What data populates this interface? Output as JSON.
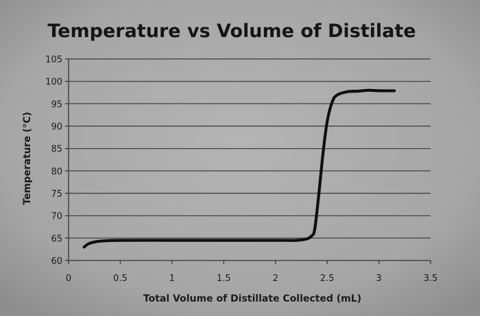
{
  "chart_data": {
    "type": "line",
    "title": "Temperature vs Volume of Distilate",
    "xlabel": "Total Volume of Distillate Collected (mL)",
    "ylabel": "Temperature (°C)",
    "xlim": [
      0,
      3.5
    ],
    "ylim": [
      60,
      105
    ],
    "x_ticks": [
      "0",
      "0.5",
      "1",
      "1.5",
      "2",
      "2.5",
      "3",
      "3.5"
    ],
    "y_ticks": [
      "60",
      "65",
      "70",
      "75",
      "80",
      "85",
      "90",
      "95",
      "100",
      "105"
    ],
    "grid": true,
    "legend": "none",
    "series": [
      {
        "x": [
          0.15,
          0.2,
          0.3,
          0.5,
          1.0,
          1.5,
          2.0,
          2.2,
          2.3,
          2.35,
          2.38,
          2.42,
          2.46,
          2.5,
          2.55,
          2.6,
          2.7,
          2.8,
          2.9,
          3.0,
          3.15
        ],
        "y": [
          63,
          63.8,
          64.3,
          64.5,
          64.5,
          64.5,
          64.5,
          64.5,
          64.8,
          65.5,
          67,
          75,
          84,
          91,
          95.5,
          97,
          97.7,
          97.8,
          98,
          97.9,
          97.9
        ]
      }
    ],
    "colors": {
      "background": "#3a3a3a",
      "plot": "#a9a9a9",
      "line": "#0e0e0e"
    }
  }
}
